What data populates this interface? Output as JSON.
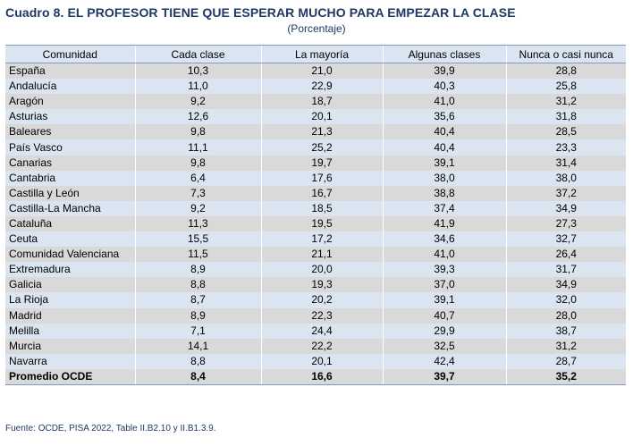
{
  "title": "Cuadro 8. EL PROFESOR TIENE QUE ESPERAR MUCHO PARA EMPEZAR LA CLASE",
  "subtitle": "(Porcentaje)",
  "columns": [
    "Comunidad",
    "Cada clase",
    "La mayoría",
    "Algunas clases",
    "Nunca o casi nunca"
  ],
  "rows": [
    [
      "España",
      "10,3",
      "21,0",
      "39,9",
      "28,8"
    ],
    [
      "Andalucía",
      "11,0",
      "22,9",
      "40,3",
      "25,8"
    ],
    [
      "Aragón",
      "9,2",
      "18,7",
      "41,0",
      "31,2"
    ],
    [
      "Asturias",
      "12,6",
      "20,1",
      "35,6",
      "31,8"
    ],
    [
      "Baleares",
      "9,8",
      "21,3",
      "40,4",
      "28,5"
    ],
    [
      "País Vasco",
      "11,1",
      "25,2",
      "40,4",
      "23,3"
    ],
    [
      "Canarias",
      "9,8",
      "19,7",
      "39,1",
      "31,4"
    ],
    [
      "Cantabria",
      "6,4",
      "17,6",
      "38,0",
      "38,0"
    ],
    [
      "Castilla y León",
      "7,3",
      "16,7",
      "38,8",
      "37,2"
    ],
    [
      "Castilla-La Mancha",
      "9,2",
      "18,5",
      "37,4",
      "34,9"
    ],
    [
      "Cataluña",
      "11,3",
      "19,5",
      "41,9",
      "27,3"
    ],
    [
      "Ceuta",
      "15,5",
      "17,2",
      "34,6",
      "32,7"
    ],
    [
      "Comunidad Valenciana",
      "11,5",
      "21,1",
      "41,0",
      "26,4"
    ],
    [
      "Extremadura",
      "8,9",
      "20,0",
      "39,3",
      "31,7"
    ],
    [
      "Galicia",
      "8,8",
      "19,3",
      "37,0",
      "34,9"
    ],
    [
      "La Rioja",
      "8,7",
      "20,2",
      "39,1",
      "32,0"
    ],
    [
      "Madrid",
      "8,9",
      "22,3",
      "40,7",
      "28,0"
    ],
    [
      "Melilla",
      "7,1",
      "24,4",
      "29,9",
      "38,7"
    ],
    [
      "Murcia",
      "14,1",
      "22,2",
      "32,5",
      "31,2"
    ],
    [
      "Navarra",
      "8,8",
      "20,1",
      "42,4",
      "28,7"
    ],
    [
      "Promedio OCDE",
      "8,4",
      "16,6",
      "39,7",
      "35,2"
    ]
  ],
  "source": "Fuente: OCDE, PISA 2022, Table II.B2.10 y II.B1.3.9.",
  "colors": {
    "title": "#1f3864",
    "header_bg": "#dbe5f1",
    "row_gray": "#d9d9d9",
    "row_blue": "#dbe5f1",
    "rule": "#7f9bbf"
  }
}
